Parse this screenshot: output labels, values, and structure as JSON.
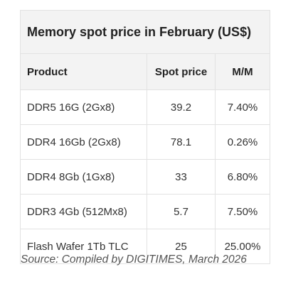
{
  "table": {
    "title": "Memory spot price in February (US$)",
    "headers": [
      "Product",
      "Spot price",
      "M/M"
    ],
    "rows": [
      [
        "DDR5 16G (2Gx8)",
        "39.2",
        "7.40%"
      ],
      [
        "DDR4 16Gb (2Gx8)",
        "78.1",
        "0.26%"
      ],
      [
        "DDR4 8Gb (1Gx8)",
        "33",
        "6.80%"
      ],
      [
        "DDR3 4Gb (512Mx8)",
        "5.7",
        "7.50%"
      ],
      [
        "Flash Wafer 1Tb TLC",
        "25",
        "25.00%"
      ]
    ]
  },
  "source": "Source: Compiled by DIGITIMES, March 2026"
}
